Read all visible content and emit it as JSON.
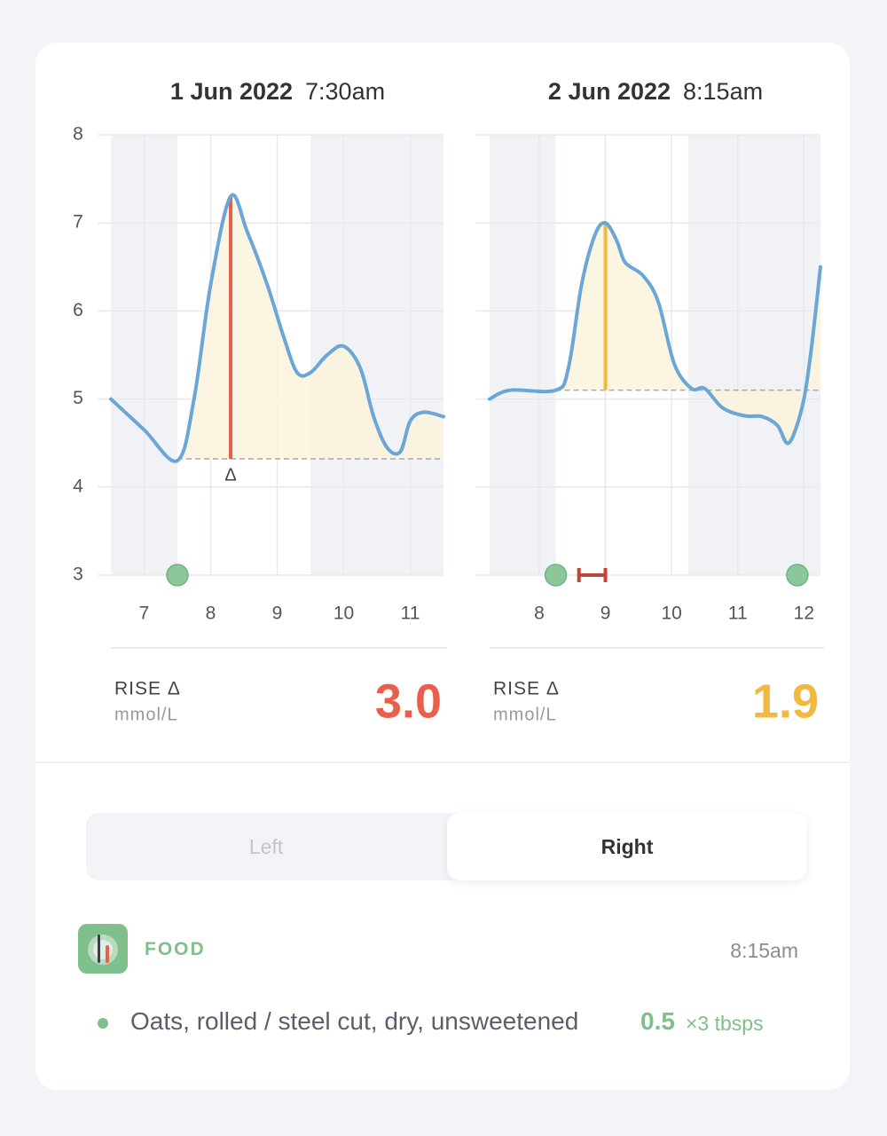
{
  "chart_data": [
    {
      "type": "line",
      "title": "1 Jun 2022",
      "subtitle": "7:30am",
      "xlim": [
        6.5,
        11.5
      ],
      "xticks": [
        7,
        8,
        9,
        10,
        11
      ],
      "ylim": [
        3,
        8
      ],
      "yticks": [
        3,
        4,
        5,
        6,
        7,
        8
      ],
      "ytick_labels": true,
      "grid": true,
      "shaded_ranges": [
        [
          6.5,
          7.5
        ],
        [
          9.5,
          11.5
        ]
      ],
      "shade_color": "#f1f2f6",
      "series": [
        {
          "x": [
            6.5,
            7,
            7.5,
            7.75,
            8,
            8.3,
            8.55,
            8.85,
            9.1,
            9.3,
            9.5,
            9.75,
            10,
            10.25,
            10.45,
            10.65,
            10.85,
            11,
            11.2,
            11.5
          ],
          "values": [
            5.0,
            4.65,
            4.3,
            5.0,
            6.3,
            7.3,
            6.9,
            6.3,
            5.7,
            5.3,
            5.3,
            5.5,
            5.6,
            5.35,
            4.8,
            4.45,
            4.4,
            4.75,
            4.85,
            4.8
          ],
          "color": "#6aa6d6"
        }
      ],
      "baseline": 4.32,
      "baseline_start": 7.5,
      "area_color": "#fbf3dc",
      "peak_x": 8.3,
      "peak_y": 7.3,
      "peak_color": "#e8604c",
      "peak_label": "Δ",
      "markers": {
        "x": [
          7.5
        ],
        "color": "#8cc79a"
      },
      "range_markers": [],
      "rise": {
        "label": "RISE Δ",
        "unit": "mmol/L",
        "value": 3,
        "value_label": "3.0"
      }
    },
    {
      "type": "line",
      "title": "2 Jun 2022",
      "subtitle": "8:15am",
      "xlim": [
        7.25,
        12.25
      ],
      "xticks": [
        8,
        9,
        10,
        11,
        12
      ],
      "ylim": [
        3,
        8
      ],
      "yticks": [
        3,
        4,
        5,
        6,
        7,
        8
      ],
      "ytick_labels": false,
      "grid": true,
      "shaded_ranges": [
        [
          7.25,
          8.25
        ],
        [
          10.25,
          12.25
        ]
      ],
      "shade_color": "#f1f2f6",
      "series": [
        {
          "x": [
            7.25,
            7.56,
            8.25,
            8.44,
            8.64,
            8.84,
            9.0,
            9.17,
            9.3,
            9.57,
            9.8,
            10.04,
            10.3,
            10.5,
            10.77,
            11.1,
            11.37,
            11.6,
            11.77,
            11.97,
            12.1,
            12.25
          ],
          "values": [
            5.0,
            5.1,
            5.1,
            5.35,
            6.3,
            6.86,
            7.0,
            6.8,
            6.55,
            6.4,
            6.1,
            5.4,
            5.12,
            5.12,
            4.9,
            4.81,
            4.8,
            4.7,
            4.5,
            4.9,
            5.5,
            6.5
          ],
          "color": "#6aa6d6"
        }
      ],
      "baseline": 5.1,
      "baseline_start": 8.25,
      "area_color": "#fbf3dc",
      "peak_x": 9.0,
      "peak_y": 7.0,
      "peak_color": "#f2b940",
      "markers": {
        "x": [
          8.25,
          11.9
        ],
        "color": "#8cc79a"
      },
      "range_markers": [
        {
          "start": 8.6,
          "end": 9.0,
          "color": "#c0443a"
        }
      ],
      "rise": {
        "label": "RISE Δ",
        "unit": "mmol/L",
        "value": 1.9,
        "value_label": "1.9"
      }
    }
  ],
  "toggle": {
    "options": [
      "Left",
      "Right"
    ],
    "selected": 1
  },
  "food": {
    "label": "FOOD",
    "time": "8:15am",
    "items": [
      {
        "name": "Oats, rolled / steel cut, dry, unsweetened",
        "amount": 0.5,
        "unit": "×3 tbsps"
      }
    ]
  }
}
